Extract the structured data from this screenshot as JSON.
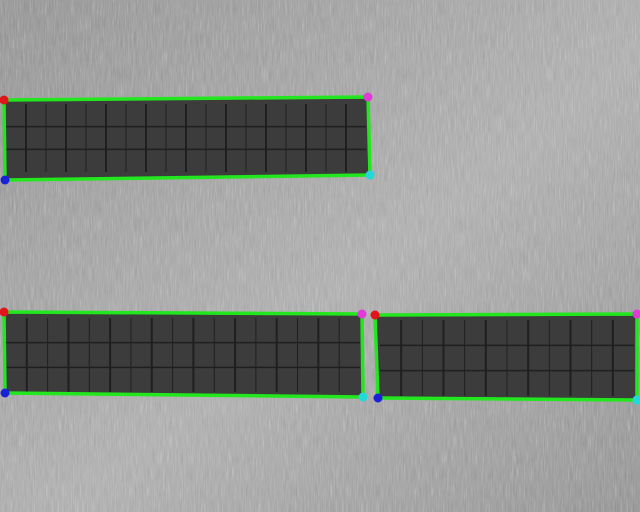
{
  "colors": {
    "ground": "#8a8a8a",
    "ground_light": "#b4b4b4",
    "panel_fill": "#3c3c3c",
    "panel_grid": "#1f1f1f",
    "outline": "#22e61e",
    "corner_top_left": "#e0161a",
    "corner_top_right": "#e23ad8",
    "corner_bottom_left": "#1a22d8",
    "corner_bottom_right": "#22d8d8"
  },
  "scene": {
    "type": "aerial thermal-style grayscale image of solar panel rows with detection outlines",
    "detections_count": 3
  }
}
